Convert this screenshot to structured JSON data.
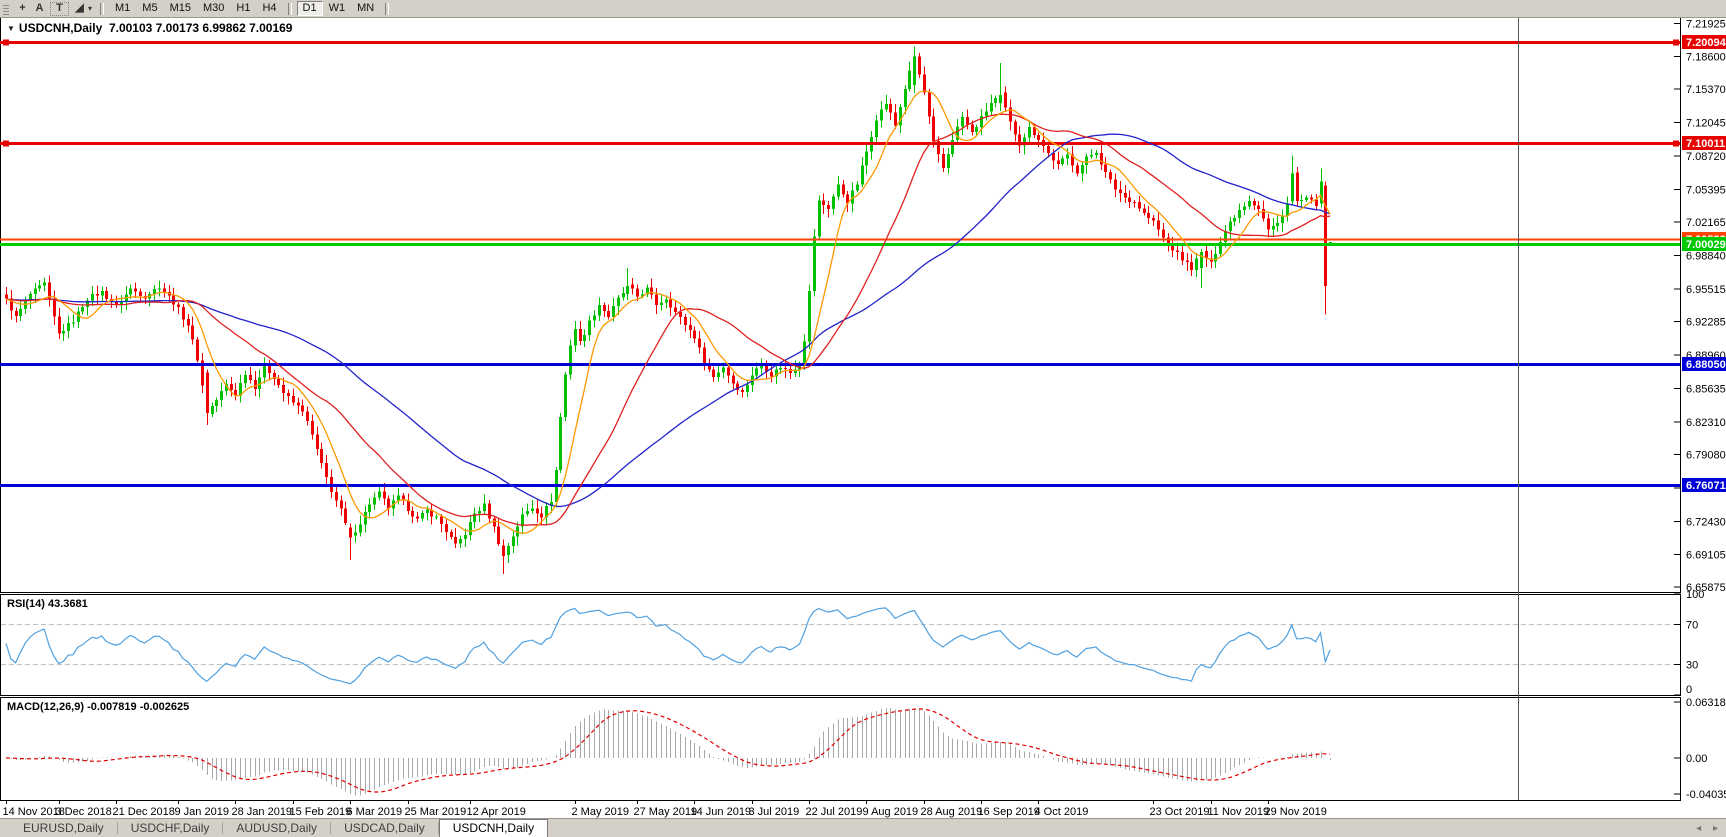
{
  "toolbar": {
    "tools": [
      {
        "name": "crosshair-icon",
        "glyph": "+"
      },
      {
        "name": "text-annotation-icon",
        "glyph": "A"
      },
      {
        "name": "text-label-icon",
        "glyph": "T",
        "boxed": true
      },
      {
        "name": "line-studies-icon",
        "glyph": "◢",
        "caret": true
      }
    ],
    "timeframes": [
      "M1",
      "M5",
      "M15",
      "M30",
      "H1",
      "H4",
      "D1",
      "W1",
      "MN"
    ],
    "active_timeframe": "D1"
  },
  "header": {
    "dropdown_icon": "▼",
    "title": "USDCNH,Daily",
    "ohlc": "7.00103 7.00173 6.99862 7.00169"
  },
  "rsi_panel": {
    "name": "RSI(14)",
    "value": "43.3681"
  },
  "macd_panel": {
    "name": "MACD(12,26,9)",
    "values": "-0.007819 -0.002625"
  },
  "tabs": {
    "items": [
      "EURUSD,Daily",
      "USDCHF,Daily",
      "AUDUSD,Daily",
      "USDCAD,Daily",
      "USDCNH,Daily"
    ],
    "active_index": 4,
    "nav_left": "◂",
    "nav_right": "▸"
  },
  "chart_data": {
    "type": "candlestick",
    "symbol": "USDCNH",
    "period": "Daily",
    "current_ohlc": {
      "open": 7.00103,
      "high": 7.00173,
      "low": 6.99862,
      "close": 7.00169
    },
    "visible_bars": 278,
    "bull_color": "#00C000",
    "bear_color": "#F00000",
    "price_ticks": [
      "7.21925",
      "7.18600",
      "7.15370",
      "7.12045",
      "7.08720",
      "7.05395",
      "7.02165",
      "6.98840",
      "6.95515",
      "6.92285",
      "6.88960",
      "6.85635",
      "6.82310",
      "6.79080",
      "6.75755",
      "6.72430",
      "6.69105",
      "6.65875"
    ],
    "hlines": [
      {
        "value": 7.20094,
        "label": "7.20094",
        "color": "#E80000",
        "width": 3,
        "badge": "#E80000",
        "handles": true
      },
      {
        "value": 7.10011,
        "label": "7.10011",
        "color": "#E80000",
        "width": 3,
        "badge": "#E80000",
        "handles": true
      },
      {
        "value": 7.00533,
        "label": "7.00533",
        "color": "#FF4500",
        "width": 2,
        "badge": "#FF4500",
        "handles": false
      },
      {
        "value": 7.00029,
        "label": "7.00029",
        "color": "#00CC00",
        "width": 3,
        "badge": "#00C800",
        "handles": false
      },
      {
        "value": 6.8805,
        "label": "6.88050",
        "color": "#0000D8",
        "width": 3,
        "badge": "#0000D8",
        "handles": false
      },
      {
        "value": 6.76071,
        "label": "6.76071",
        "color": "#0000D8",
        "width": 3,
        "badge": "#0000D8",
        "handles": false
      }
    ],
    "moving_averages": [
      {
        "period": 55,
        "color": "#2222CC"
      },
      {
        "period": 25,
        "color": "#E02020"
      },
      {
        "period": 8,
        "color": "#FF9900"
      }
    ],
    "rsi": {
      "period": 14,
      "color": "#4FA0E0",
      "levels": [
        {
          "v": 100,
          "label": "100",
          "dashed": false
        },
        {
          "v": 70,
          "label": "70",
          "dashed": true
        },
        {
          "v": 30,
          "label": "30",
          "dashed": true
        },
        {
          "v": 0,
          "label": "0",
          "dashed": false
        }
      ]
    },
    "macd": {
      "fast": 12,
      "slow": 26,
      "signal": 9,
      "hist_color": "#A8A8A8",
      "signal_color": "#E00000",
      "ticks": [
        {
          "v": 0.063184,
          "label": "0.063184"
        },
        {
          "v": 0.0,
          "label": "0.00"
        },
        {
          "v": -0.040355,
          "label": "-0.040355"
        }
      ]
    },
    "date_ticks": [
      {
        "label": "14 Nov 2018",
        "i": 0
      },
      {
        "label": "3 Dec 2018",
        "i": 11
      },
      {
        "label": "21 Dec 2018",
        "i": 23
      },
      {
        "label": "9 Jan 2019",
        "i": 36
      },
      {
        "label": "28 Jan 2019",
        "i": 48
      },
      {
        "label": "15 Feb 2019",
        "i": 60
      },
      {
        "label": "6 Mar 2019",
        "i": 72
      },
      {
        "label": "25 Mar 2019",
        "i": 84
      },
      {
        "label": "12 Apr 2019",
        "i": 97
      },
      {
        "label": "2 May 2019",
        "i": 119
      },
      {
        "label": "27 May 2019",
        "i": 132
      },
      {
        "label": "14 Jun 2019",
        "i": 144
      },
      {
        "label": "3 Jul 2019",
        "i": 156
      },
      {
        "label": "22 Jul 2019",
        "i": 168
      },
      {
        "label": "9 Aug 2019",
        "i": 180
      },
      {
        "label": "28 Aug 2019",
        "i": 192
      },
      {
        "label": "16 Sep 2019",
        "i": 204
      },
      {
        "label": "4 Oct 2019",
        "i": 216
      },
      {
        "label": "23 Oct 2019",
        "i": 240
      },
      {
        "label": "11 Nov 2019",
        "i": 252
      },
      {
        "label": "29 Nov 2019",
        "i": 264
      }
    ],
    "close_anchors": [
      [
        0,
        6.944
      ],
      [
        2,
        6.927
      ],
      [
        5,
        6.95
      ],
      [
        8,
        6.96
      ],
      [
        11,
        6.91
      ],
      [
        14,
        6.924
      ],
      [
        17,
        6.946
      ],
      [
        20,
        6.952
      ],
      [
        23,
        6.938
      ],
      [
        26,
        6.955
      ],
      [
        29,
        6.948
      ],
      [
        32,
        6.958
      ],
      [
        35,
        6.942
      ],
      [
        38,
        6.92
      ],
      [
        40,
        6.886
      ],
      [
        42,
        6.832
      ],
      [
        44,
        6.845
      ],
      [
        46,
        6.86
      ],
      [
        48,
        6.85
      ],
      [
        50,
        6.872
      ],
      [
        52,
        6.858
      ],
      [
        54,
        6.878
      ],
      [
        56,
        6.868
      ],
      [
        58,
        6.852
      ],
      [
        60,
        6.842
      ],
      [
        62,
        6.835
      ],
      [
        64,
        6.81
      ],
      [
        66,
        6.78
      ],
      [
        68,
        6.755
      ],
      [
        70,
        6.735
      ],
      [
        72,
        6.708
      ],
      [
        74,
        6.723
      ],
      [
        76,
        6.742
      ],
      [
        78,
        6.752
      ],
      [
        80,
        6.738
      ],
      [
        82,
        6.748
      ],
      [
        84,
        6.737
      ],
      [
        86,
        6.726
      ],
      [
        88,
        6.735
      ],
      [
        90,
        6.728
      ],
      [
        92,
        6.715
      ],
      [
        94,
        6.7
      ],
      [
        96,
        6.712
      ],
      [
        98,
        6.732
      ],
      [
        100,
        6.74
      ],
      [
        102,
        6.718
      ],
      [
        104,
        6.69
      ],
      [
        106,
        6.71
      ],
      [
        108,
        6.73
      ],
      [
        110,
        6.738
      ],
      [
        112,
        6.73
      ],
      [
        114,
        6.745
      ],
      [
        115,
        6.775
      ],
      [
        116,
        6.828
      ],
      [
        117,
        6.87
      ],
      [
        118,
        6.9
      ],
      [
        119,
        6.916
      ],
      [
        120,
        6.902
      ],
      [
        122,
        6.922
      ],
      [
        124,
        6.94
      ],
      [
        126,
        6.928
      ],
      [
        128,
        6.945
      ],
      [
        130,
        6.958
      ],
      [
        132,
        6.948
      ],
      [
        134,
        6.955
      ],
      [
        136,
        6.94
      ],
      [
        138,
        6.946
      ],
      [
        140,
        6.932
      ],
      [
        142,
        6.92
      ],
      [
        144,
        6.908
      ],
      [
        146,
        6.882
      ],
      [
        148,
        6.868
      ],
      [
        150,
        6.878
      ],
      [
        152,
        6.862
      ],
      [
        154,
        6.852
      ],
      [
        156,
        6.87
      ],
      [
        158,
        6.88
      ],
      [
        160,
        6.87
      ],
      [
        162,
        6.878
      ],
      [
        164,
        6.872
      ],
      [
        166,
        6.882
      ],
      [
        167,
        6.905
      ],
      [
        168,
        6.952
      ],
      [
        169,
        7.008
      ],
      [
        170,
        7.042
      ],
      [
        172,
        7.036
      ],
      [
        174,
        7.058
      ],
      [
        176,
        7.042
      ],
      [
        178,
        7.06
      ],
      [
        180,
        7.092
      ],
      [
        182,
        7.125
      ],
      [
        184,
        7.14
      ],
      [
        186,
        7.118
      ],
      [
        188,
        7.155
      ],
      [
        190,
        7.186
      ],
      [
        192,
        7.15
      ],
      [
        194,
        7.1
      ],
      [
        196,
        7.075
      ],
      [
        198,
        7.105
      ],
      [
        200,
        7.126
      ],
      [
        202,
        7.11
      ],
      [
        204,
        7.125
      ],
      [
        206,
        7.14
      ],
      [
        208,
        7.148
      ],
      [
        210,
        7.12
      ],
      [
        212,
        7.1
      ],
      [
        214,
        7.115
      ],
      [
        216,
        7.105
      ],
      [
        218,
        7.09
      ],
      [
        220,
        7.078
      ],
      [
        222,
        7.088
      ],
      [
        224,
        7.072
      ],
      [
        226,
        7.085
      ],
      [
        228,
        7.092
      ],
      [
        230,
        7.07
      ],
      [
        232,
        7.055
      ],
      [
        234,
        7.046
      ],
      [
        236,
        7.042
      ],
      [
        238,
        7.03
      ],
      [
        240,
        7.022
      ],
      [
        242,
        7.006
      ],
      [
        244,
        6.995
      ],
      [
        246,
        6.985
      ],
      [
        248,
        6.976
      ],
      [
        250,
        6.992
      ],
      [
        252,
        6.98
      ],
      [
        254,
        7.004
      ],
      [
        256,
        7.022
      ],
      [
        258,
        7.034
      ],
      [
        260,
        7.044
      ],
      [
        262,
        7.036
      ],
      [
        264,
        7.014
      ],
      [
        266,
        7.02
      ],
      [
        268,
        7.04
      ],
      [
        269,
        7.07
      ],
      [
        270,
        7.042
      ],
      [
        272,
        7.044
      ],
      [
        274,
        7.04
      ],
      [
        275,
        7.062
      ],
      [
        276,
        6.958
      ],
      [
        277,
        7.002
      ]
    ],
    "overrides": [
      {
        "i": 42,
        "o": 6.872,
        "h": 6.875,
        "l": 6.82,
        "c": 6.832
      },
      {
        "i": 72,
        "o": 6.718,
        "h": 6.722,
        "l": 6.686,
        "c": 6.708
      },
      {
        "i": 104,
        "o": 6.7,
        "h": 6.706,
        "l": 6.672,
        "c": 6.69
      },
      {
        "i": 130,
        "o": 6.95,
        "h": 6.976,
        "l": 6.944,
        "c": 6.958
      },
      {
        "i": 190,
        "o": 7.158,
        "h": 7.196,
        "l": 7.15,
        "c": 7.186
      },
      {
        "i": 208,
        "o": 7.14,
        "h": 7.18,
        "l": 7.132,
        "c": 7.148
      },
      {
        "i": 250,
        "o": 6.976,
        "h": 6.995,
        "l": 6.956,
        "c": 6.992
      },
      {
        "i": 269,
        "o": 7.042,
        "h": 7.088,
        "l": 7.038,
        "c": 7.07
      },
      {
        "i": 275,
        "o": 7.04,
        "h": 7.075,
        "l": 7.036,
        "c": 7.062
      },
      {
        "i": 276,
        "o": 7.058,
        "h": 7.062,
        "l": 6.93,
        "c": 6.958
      },
      {
        "i": 277,
        "o": 7.00103,
        "h": 7.00173,
        "l": 6.99862,
        "c": 7.00169
      }
    ]
  }
}
